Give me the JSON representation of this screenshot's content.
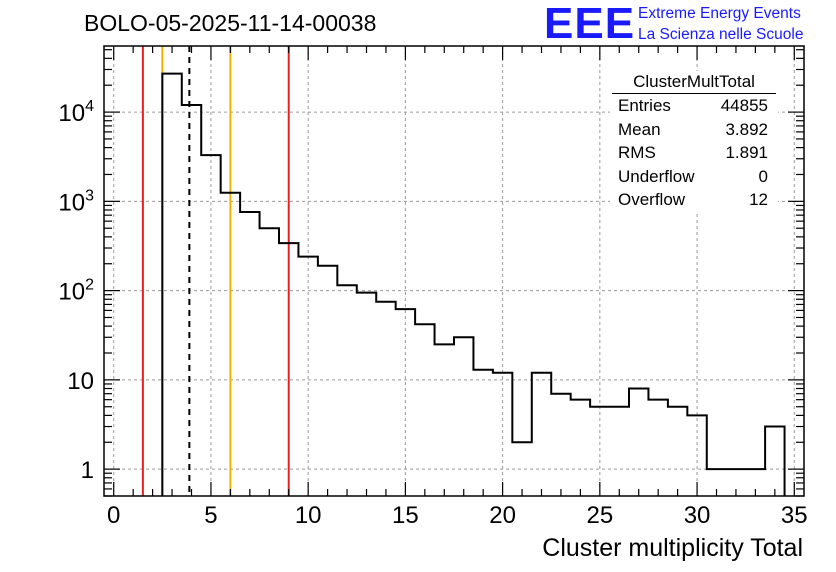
{
  "title": "BOLO-05-2025-11-14-00038",
  "logo": {
    "mark": "EEE",
    "line1": "Extreme Energy Events",
    "line2": "La Scienza nelle Scuole",
    "color": "#1a1aff"
  },
  "stats": {
    "name": "ClusterMultTotal",
    "rows": [
      {
        "label": "Entries",
        "value": "44855"
      },
      {
        "label": "Mean",
        "value": "3.892"
      },
      {
        "label": "RMS",
        "value": "1.891"
      },
      {
        "label": "Underflow",
        "value": "0"
      },
      {
        "label": "Overflow",
        "value": "12"
      }
    ]
  },
  "chart_data": {
    "type": "histogram",
    "title": "BOLO-05-2025-11-14-00038",
    "xlabel": "Cluster multiplicity Total",
    "ylabel": "",
    "yscale": "log",
    "xlim": [
      -0.5,
      35.5
    ],
    "ylim": [
      0.5,
      55000
    ],
    "bin_width": 1,
    "bin_edges_start": 2.5,
    "counts": [
      27000,
      12000,
      3300,
      1250,
      760,
      500,
      340,
      240,
      190,
      115,
      95,
      75,
      62,
      42,
      25,
      30,
      13,
      12,
      2,
      12,
      7,
      6,
      5,
      5,
      8,
      6,
      5,
      4,
      1,
      1,
      1,
      3
    ],
    "x_ticks": [
      0,
      5,
      10,
      15,
      20,
      25,
      30,
      35
    ],
    "x_tick_labels": [
      "0",
      "5",
      "10",
      "15",
      "20",
      "25",
      "30",
      "35"
    ],
    "y_ticks": [
      1,
      10,
      100,
      1000,
      10000
    ],
    "y_tick_labels": [
      "1",
      "10",
      "10^2",
      "10^3",
      "10^4"
    ],
    "grid": true,
    "vertical_lines": [
      {
        "x": 1.5,
        "color": "#e8211c",
        "style": "solid"
      },
      {
        "x": 2.5,
        "color": "#f0b400",
        "style": "solid"
      },
      {
        "x": 3.89,
        "color": "#000000",
        "style": "dashed"
      },
      {
        "x": 6.0,
        "color": "#f0b400",
        "style": "solid"
      },
      {
        "x": 9.0,
        "color": "#e8211c",
        "style": "solid"
      }
    ]
  }
}
